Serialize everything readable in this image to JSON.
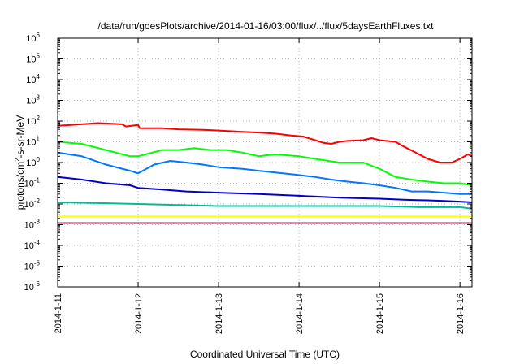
{
  "chart_data": {
    "type": "line",
    "title": "/data/run/goesPlots/archive/2014-01-16/03:00/flux/../flux/5daysEarthFluxes.txt",
    "xlabel": "Coordinated Universal Time (UTC)",
    "ylabel": {
      "prefix": "protons/cm",
      "sup": "2",
      "suffix": "-s-sr-MeV"
    },
    "yscale": "log",
    "ylim": [
      1e-06,
      1000000.0
    ],
    "xlim": [
      0,
      5.15
    ],
    "grid": true,
    "legend": "none",
    "x_ticks": [
      {
        "x": 0,
        "label": "2014-1-11"
      },
      {
        "x": 1,
        "label": "2014-1-12"
      },
      {
        "x": 2,
        "label": "2014-1-13"
      },
      {
        "x": 3,
        "label": "2014-1-14"
      },
      {
        "x": 4,
        "label": "2014-1-15"
      },
      {
        "x": 5,
        "label": "2014-1-16"
      }
    ],
    "y_ticks": [
      {
        "exp": 6,
        "label": "10",
        "sup": "6"
      },
      {
        "exp": 5,
        "label": "10",
        "sup": "5"
      },
      {
        "exp": 4,
        "label": "10",
        "sup": "4"
      },
      {
        "exp": 3,
        "label": "10",
        "sup": "3"
      },
      {
        "exp": 2,
        "label": "10",
        "sup": "2"
      },
      {
        "exp": 1,
        "label": "10",
        "sup": "1"
      },
      {
        "exp": 0,
        "label": "10",
        "sup": "0"
      },
      {
        "exp": -1,
        "label": "10",
        "sup": "-1"
      },
      {
        "exp": -2,
        "label": "10",
        "sup": "-2"
      },
      {
        "exp": -3,
        "label": "10",
        "sup": "-3"
      },
      {
        "exp": -4,
        "label": "10",
        "sup": "-4"
      },
      {
        "exp": -5,
        "label": "10",
        "sup": "-5"
      },
      {
        "exp": -6,
        "label": "10",
        "sup": "-6"
      }
    ],
    "series": [
      {
        "color": "#ff0000",
        "points": [
          [
            0,
            60
          ],
          [
            0.3,
            70
          ],
          [
            0.5,
            80
          ],
          [
            0.8,
            70
          ],
          [
            0.85,
            55
          ],
          [
            1.0,
            65
          ],
          [
            1.02,
            45
          ],
          [
            1.3,
            45
          ],
          [
            1.5,
            40
          ],
          [
            1.8,
            38
          ],
          [
            2.0,
            35
          ],
          [
            2.3,
            30
          ],
          [
            2.5,
            28
          ],
          [
            2.7,
            25
          ],
          [
            2.9,
            20
          ],
          [
            3.05,
            18
          ],
          [
            3.2,
            12
          ],
          [
            3.3,
            9
          ],
          [
            3.4,
            8
          ],
          [
            3.5,
            10
          ],
          [
            3.6,
            11
          ],
          [
            3.8,
            12
          ],
          [
            3.9,
            15
          ],
          [
            4.0,
            12
          ],
          [
            4.2,
            10
          ],
          [
            4.3,
            6
          ],
          [
            4.45,
            3
          ],
          [
            4.6,
            1.5
          ],
          [
            4.75,
            1.0
          ],
          [
            4.9,
            1.0
          ],
          [
            5.0,
            1.5
          ],
          [
            5.1,
            2.5
          ],
          [
            5.15,
            2.0
          ]
        ]
      },
      {
        "color": "#00ff00",
        "points": [
          [
            0,
            10
          ],
          [
            0.3,
            8
          ],
          [
            0.6,
            4
          ],
          [
            0.9,
            2
          ],
          [
            1.0,
            2
          ],
          [
            1.3,
            4
          ],
          [
            1.5,
            4
          ],
          [
            1.7,
            5
          ],
          [
            1.9,
            4
          ],
          [
            2.1,
            4
          ],
          [
            2.3,
            3
          ],
          [
            2.5,
            2
          ],
          [
            2.7,
            2.5
          ],
          [
            3.0,
            2
          ],
          [
            3.2,
            1.5
          ],
          [
            3.5,
            1
          ],
          [
            3.8,
            1
          ],
          [
            4.0,
            0.5
          ],
          [
            4.2,
            0.2
          ],
          [
            4.4,
            0.15
          ],
          [
            4.6,
            0.12
          ],
          [
            4.8,
            0.1
          ],
          [
            5.0,
            0.1
          ],
          [
            5.15,
            0.08
          ]
        ]
      },
      {
        "color": "#0077ff",
        "points": [
          [
            0,
            3
          ],
          [
            0.3,
            2
          ],
          [
            0.6,
            0.8
          ],
          [
            0.9,
            0.4
          ],
          [
            1.0,
            0.3
          ],
          [
            1.2,
            0.8
          ],
          [
            1.4,
            1.2
          ],
          [
            1.6,
            1.0
          ],
          [
            1.8,
            0.8
          ],
          [
            2.0,
            0.6
          ],
          [
            2.3,
            0.5
          ],
          [
            2.5,
            0.4
          ],
          [
            2.8,
            0.3
          ],
          [
            3.0,
            0.25
          ],
          [
            3.2,
            0.2
          ],
          [
            3.4,
            0.15
          ],
          [
            3.6,
            0.12
          ],
          [
            3.8,
            0.1
          ],
          [
            4.0,
            0.08
          ],
          [
            4.2,
            0.06
          ],
          [
            4.4,
            0.04
          ],
          [
            4.6,
            0.04
          ],
          [
            4.8,
            0.035
          ],
          [
            5.0,
            0.03
          ],
          [
            5.15,
            0.03
          ]
        ]
      },
      {
        "color": "#0000cc",
        "points": [
          [
            0,
            0.2
          ],
          [
            0.3,
            0.15
          ],
          [
            0.6,
            0.1
          ],
          [
            0.9,
            0.08
          ],
          [
            1.0,
            0.06
          ],
          [
            1.3,
            0.05
          ],
          [
            1.6,
            0.04
          ],
          [
            2.0,
            0.035
          ],
          [
            2.5,
            0.03
          ],
          [
            3.0,
            0.025
          ],
          [
            3.5,
            0.02
          ],
          [
            4.0,
            0.018
          ],
          [
            4.3,
            0.016
          ],
          [
            4.6,
            0.015
          ],
          [
            4.8,
            0.014
          ],
          [
            5.0,
            0.013
          ],
          [
            5.15,
            0.012
          ]
        ]
      },
      {
        "color": "#00bb99",
        "points": [
          [
            0,
            0.012
          ],
          [
            0.5,
            0.011
          ],
          [
            1.0,
            0.01
          ],
          [
            1.5,
            0.009
          ],
          [
            2.0,
            0.008
          ],
          [
            2.5,
            0.008
          ],
          [
            3.0,
            0.008
          ],
          [
            3.5,
            0.008
          ],
          [
            4.0,
            0.008
          ],
          [
            4.5,
            0.007
          ],
          [
            5.0,
            0.007
          ],
          [
            5.15,
            0.006
          ]
        ]
      },
      {
        "color": "#ffff00",
        "points": [
          [
            0,
            0.0025
          ],
          [
            1.0,
            0.0025
          ],
          [
            2.0,
            0.0025
          ],
          [
            3.0,
            0.0025
          ],
          [
            4.0,
            0.0025
          ],
          [
            5.15,
            0.0025
          ]
        ]
      },
      {
        "color": "#993366",
        "points": [
          [
            0,
            0.0012
          ],
          [
            1.0,
            0.0012
          ],
          [
            2.0,
            0.0012
          ],
          [
            3.0,
            0.0012
          ],
          [
            4.0,
            0.0012
          ],
          [
            5.15,
            0.0012
          ]
        ]
      }
    ]
  }
}
